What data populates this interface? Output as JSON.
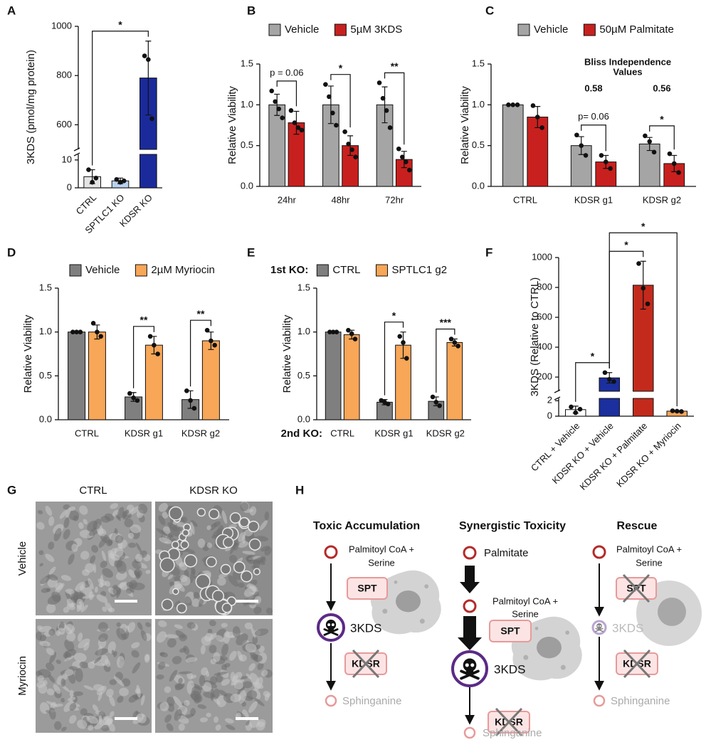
{
  "chart_data": [
    {
      "type": "bar",
      "label": "A",
      "ylabel": "3KDS (pmol/mg protein)",
      "categories": [
        "CTRL",
        "SPTLC1 KO",
        "KDSR KO"
      ],
      "values": [
        4,
        2.5,
        790
      ],
      "errors": [
        2.5,
        1,
        150
      ],
      "points": [
        [
          6.5,
          2,
          3.5
        ],
        [
          3,
          2,
          2.5
        ],
        [
          880,
          865,
          625
        ]
      ],
      "colors": [
        "#e4e4e4",
        "#b9d1ee",
        "#1b2a9a"
      ],
      "ylim": [
        0,
        1000
      ],
      "axis_break": [
        12,
        500
      ],
      "yticks": [
        0,
        10,
        600,
        800,
        1000
      ],
      "significance": [
        "*"
      ]
    },
    {
      "type": "bar",
      "label": "B",
      "ylabel": "Relative Viability",
      "categories": [
        "24hr",
        "48hr",
        "72hr"
      ],
      "series": [
        {
          "name": "Vehicle",
          "color": "#a5a5a5",
          "values": [
            1,
            1,
            1
          ],
          "errors": [
            0.13,
            0.23,
            0.22
          ],
          "points": [
            [
              1.17,
              1.04,
              0.95,
              0.84
            ],
            [
              1.25,
              1.1,
              0.9,
              0.75
            ],
            [
              1.27,
              1.08,
              0.93,
              0.72
            ]
          ]
        },
        {
          "name": "5µM 3KDS",
          "color": "#c8201e",
          "values": [
            0.78,
            0.5,
            0.33
          ],
          "errors": [
            0.14,
            0.12,
            0.1
          ],
          "points": [
            [
              0.93,
              0.78,
              0.72,
              0.69
            ],
            [
              0.67,
              0.52,
              0.45,
              0.36
            ],
            [
              0.46,
              0.36,
              0.3,
              0.2
            ]
          ]
        }
      ],
      "ylim": [
        0,
        1.5
      ],
      "yticks": [
        {
          "value": 0,
          "label": "0.0"
        },
        0.5,
        {
          "value": 1,
          "label": "1.0"
        },
        1.5
      ],
      "significance": [
        "p = 0.06",
        "*",
        "**"
      ],
      "legend": "top"
    },
    {
      "type": "bar",
      "label": "C",
      "ylabel": "Relative Viability",
      "categories": [
        "CTRL",
        "KDSR g1",
        "KDSR g2"
      ],
      "series": [
        {
          "name": "Vehicle",
          "color": "#a5a5a5",
          "values": [
            1,
            0.5,
            0.52
          ],
          "errors": [
            0,
            0.11,
            0.08
          ],
          "points": [
            [
              1,
              1,
              1
            ],
            [
              0.63,
              0.5,
              0.38
            ],
            [
              0.62,
              0.55,
              0.42
            ]
          ]
        },
        {
          "name": "50µM Palmitate",
          "color": "#c8201e",
          "values": [
            0.85,
            0.3,
            0.28
          ],
          "errors": [
            0.13,
            0.08,
            0.1
          ],
          "points": [
            [
              0.99,
              0.85,
              0.72
            ],
            [
              0.38,
              0.3,
              0.22
            ],
            [
              0.4,
              0.28,
              0.17
            ]
          ]
        }
      ],
      "ylim": [
        0,
        1.5
      ],
      "yticks": [
        {
          "value": 0,
          "label": "0.0"
        },
        0.5,
        {
          "value": 1,
          "label": "1.0"
        },
        1.5
      ],
      "significance": [
        null,
        "p= 0.06",
        "*"
      ],
      "legend": "top",
      "bliss": {
        "title": [
          "Bliss Independence",
          "Values"
        ],
        "values": [
          null,
          0.58,
          0.56
        ]
      }
    },
    {
      "type": "bar",
      "label": "D",
      "ylabel": "Relative Viability",
      "categories": [
        "CTRL",
        "KDSR g1",
        "KDSR g2"
      ],
      "series": [
        {
          "name": "Vehicle",
          "color": "#7f7f7f",
          "values": [
            1,
            0.26,
            0.23
          ],
          "errors": [
            0,
            0.05,
            0.1
          ],
          "points": [
            [
              1,
              1,
              1
            ],
            [
              0.3,
              0.25,
              0.22
            ],
            [
              0.33,
              0.22,
              0.13
            ]
          ]
        },
        {
          "name": "2µM Myriocin",
          "color": "#f8a657",
          "values": [
            1,
            0.85,
            0.9
          ],
          "errors": [
            0.08,
            0.1,
            0.1
          ],
          "points": [
            [
              1.1,
              1,
              0.95
            ],
            [
              0.95,
              0.85,
              0.75
            ],
            [
              1.02,
              0.9,
              0.85
            ]
          ]
        }
      ],
      "ylim": [
        0,
        1.5
      ],
      "yticks": [
        {
          "value": 0,
          "label": "0.0"
        },
        0.5,
        {
          "value": 1,
          "label": "1.0"
        },
        1.5
      ],
      "significance": [
        null,
        "**",
        "**"
      ],
      "legend": "top"
    },
    {
      "type": "bar",
      "label": "E",
      "ylabel": "Relative Viability",
      "legend_title": "1st KO:",
      "xlabel": "2nd KO:",
      "categories": [
        "CTRL",
        "KDSR g1",
        "KDSR g2"
      ],
      "series": [
        {
          "name": "CTRL",
          "color": "#7f7f7f",
          "values": [
            1,
            0.2,
            0.21
          ],
          "errors": [
            0,
            0.03,
            0.05
          ],
          "points": [
            [
              1,
              1,
              1
            ],
            [
              0.22,
              0.2,
              0.18
            ],
            [
              0.26,
              0.2,
              0.16
            ]
          ]
        },
        {
          "name": "SPTLC1 g2",
          "color": "#f8a657",
          "values": [
            0.97,
            0.85,
            0.88
          ],
          "errors": [
            0.05,
            0.15,
            0.04
          ],
          "points": [
            [
              1.02,
              0.98,
              0.92
            ],
            [
              0.95,
              0.88,
              0.7
            ],
            [
              0.92,
              0.88,
              0.84
            ]
          ]
        }
      ],
      "ylim": [
        0,
        1.5
      ],
      "yticks": [
        {
          "value": 0,
          "label": "0.0"
        },
        0.5,
        {
          "value": 1,
          "label": "1.0"
        },
        1.5
      ],
      "significance": [
        null,
        "*",
        "***"
      ],
      "legend": "top"
    },
    {
      "type": "bar",
      "label": "F",
      "ylabel": "3KDS (Relative to CTRL)",
      "categories": [
        "CTRL + Vehicle",
        "KDSR KO + Vehicle",
        "KDSR KO + Palmitate",
        "KDSR KO + Myriocin"
      ],
      "values": [
        0.85,
        195,
        815,
        0.65
      ],
      "errors": [
        0.45,
        35,
        160,
        0.08
      ],
      "points": [
        [
          1.2,
          0.45,
          0.9
        ],
        [
          230,
          185,
          170
        ],
        [
          960,
          795,
          690
        ],
        [
          0.7,
          0.65,
          0.6
        ]
      ],
      "colors": [
        "#ffffff",
        "#1b2f9e",
        "#c32a1c",
        "#f4a55a"
      ],
      "ylim": [
        0,
        1000
      ],
      "axis_break": [
        2.3,
        105
      ],
      "yticks": [
        0,
        2,
        200,
        400,
        600,
        800,
        1000
      ],
      "significance": [
        "*",
        "*",
        "*"
      ]
    }
  ],
  "panel_g": {
    "label": "G",
    "columns": [
      "CTRL",
      "KDSR KO"
    ],
    "rows": [
      "Vehicle",
      "Myriocin"
    ]
  },
  "panel_h": {
    "label": "H",
    "columns": [
      {
        "title": "Toxic Accumulation",
        "substrate": [
          "Palmitoyl CoA +",
          "Serine"
        ],
        "enzymes": [
          "SPT",
          "KDSR"
        ],
        "intermediate": "3KDS",
        "product": "Sphinganine"
      },
      {
        "title": "Synergistic Toxicity",
        "source": "Palmitate",
        "substrate": [
          "Palmitoyl CoA +",
          "Serine"
        ],
        "enzymes": [
          "SPT",
          "KDSR"
        ],
        "intermediate": "3KDS",
        "product": "Sphinganine"
      },
      {
        "title": "Rescue",
        "substrate": [
          "Palmitoyl CoA +",
          "Serine"
        ],
        "enzymes": [
          "SPT",
          "KDSR"
        ],
        "intermediate": "3KDS",
        "product": "Sphinganine"
      }
    ]
  }
}
